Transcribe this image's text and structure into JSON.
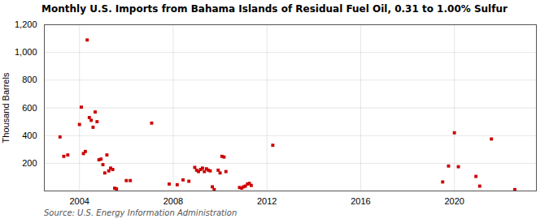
{
  "chart_data": {
    "type": "scatter",
    "title": "Monthly U.S. Imports from Bahama Islands of Residual Fuel Oil, 0.31 to 1.00% Sulfur",
    "ylabel": "Thousand Barrels",
    "source": "Source: U.S. Energy Information Administration",
    "color": "#cc0000",
    "marker": "square",
    "grid": true,
    "xlim": [
      2002.5,
      2023.5
    ],
    "xticks": [
      2004,
      2008,
      2012,
      2016,
      2020
    ],
    "ylim": [
      0,
      1200
    ],
    "yticks": [
      200,
      400,
      600,
      800,
      {
        "value": 1000,
        "label": "1,000"
      },
      {
        "value": 1200,
        "label": "1,200"
      }
    ],
    "x": [
      2003.17,
      2003.33,
      2003.5,
      2004.0,
      2004.08,
      2004.17,
      2004.25,
      2004.33,
      2004.42,
      2004.5,
      2004.58,
      2004.67,
      2004.75,
      2004.83,
      2004.92,
      2005.0,
      2005.08,
      2005.17,
      2005.25,
      2005.33,
      2005.42,
      2005.5,
      2005.58,
      2006.0,
      2006.17,
      2007.08,
      2007.83,
      2008.17,
      2008.42,
      2008.67,
      2008.92,
      2009.0,
      2009.08,
      2009.17,
      2009.25,
      2009.33,
      2009.42,
      2009.5,
      2009.58,
      2009.67,
      2009.75,
      2009.92,
      2010.0,
      2010.08,
      2010.17,
      2010.25,
      2010.83,
      2010.92,
      2011.0,
      2011.08,
      2011.17,
      2011.25,
      2011.33,
      2012.25,
      2019.5,
      2019.75,
      2020.0,
      2020.17,
      2020.92,
      2021.08,
      2021.58,
      2022.58
    ],
    "values": [
      390,
      250,
      260,
      480,
      605,
      270,
      285,
      1090,
      530,
      510,
      460,
      570,
      500,
      225,
      230,
      190,
      130,
      260,
      145,
      165,
      155,
      20,
      15,
      75,
      75,
      490,
      50,
      45,
      80,
      70,
      170,
      150,
      140,
      155,
      165,
      140,
      160,
      150,
      145,
      30,
      10,
      150,
      130,
      250,
      245,
      140,
      25,
      20,
      30,
      35,
      50,
      55,
      40,
      330,
      65,
      180,
      420,
      175,
      105,
      35,
      375,
      10
    ]
  }
}
